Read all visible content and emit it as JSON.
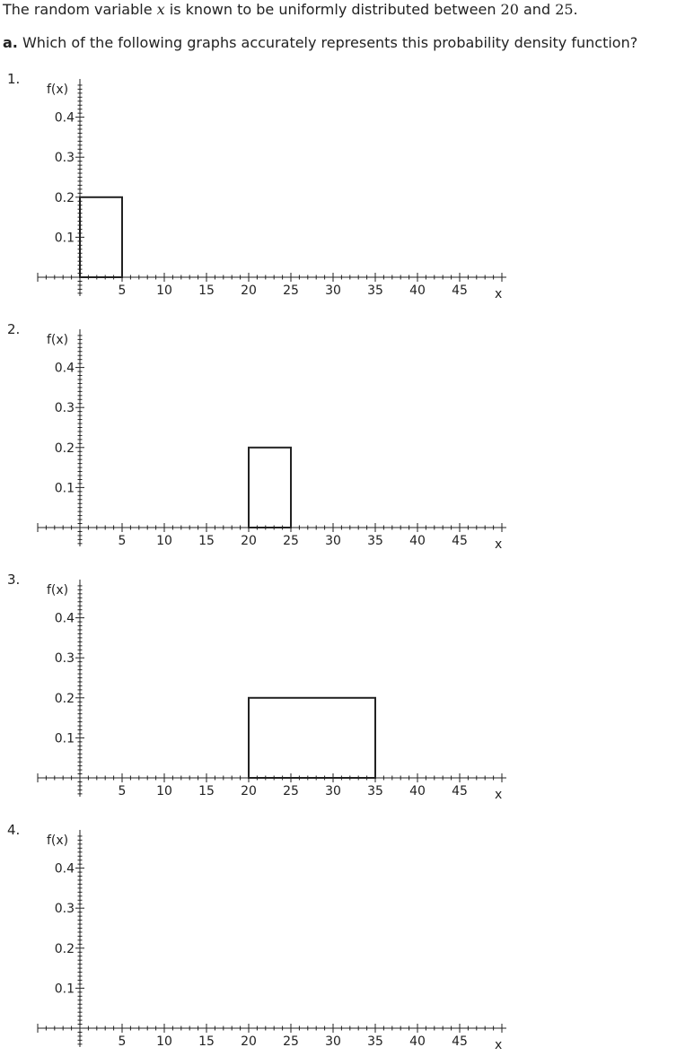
{
  "question": {
    "intro_prefix": "The random variable ",
    "variable": "x",
    "intro_mid": " is known to be uniformly distributed between ",
    "low": "20",
    "intro_and": " and ",
    "high": "25",
    "intro_suffix": ".",
    "part_label": "a.",
    "part_text": " Which of the following graphs accurately represents this probability density function?"
  },
  "chart_data": [
    {
      "type": "area",
      "number": "1.",
      "ylabel": "f(x)",
      "xlabel": "x",
      "xlim": [
        0,
        50
      ],
      "ylim": [
        0,
        0.45
      ],
      "xticks": [
        5,
        10,
        15,
        20,
        25,
        30,
        35,
        40,
        45
      ],
      "yticks": [
        0.1,
        0.2,
        0.3,
        0.4
      ],
      "rect": {
        "x_start": 0,
        "x_end": 5,
        "height": 0.2
      }
    },
    {
      "type": "area",
      "number": "2.",
      "ylabel": "f(x)",
      "xlabel": "x",
      "xlim": [
        0,
        50
      ],
      "ylim": [
        0,
        0.45
      ],
      "xticks": [
        5,
        10,
        15,
        20,
        25,
        30,
        35,
        40,
        45
      ],
      "yticks": [
        0.1,
        0.2,
        0.3,
        0.4
      ],
      "rect": {
        "x_start": 20,
        "x_end": 25,
        "height": 0.2
      }
    },
    {
      "type": "area",
      "number": "3.",
      "ylabel": "f(x)",
      "xlabel": "x",
      "xlim": [
        0,
        50
      ],
      "ylim": [
        0,
        0.45
      ],
      "xticks": [
        5,
        10,
        15,
        20,
        25,
        30,
        35,
        40,
        45
      ],
      "yticks": [
        0.1,
        0.2,
        0.3,
        0.4
      ],
      "rect": {
        "x_start": 20,
        "x_end": 35,
        "height": 0.2
      }
    },
    {
      "type": "area",
      "number": "4.",
      "ylabel": "f(x)",
      "xlabel": "x",
      "xlim": [
        0,
        50
      ],
      "ylim": [
        0,
        0.45
      ],
      "xticks": [
        5,
        10,
        15,
        20,
        25,
        30,
        35,
        40,
        45
      ],
      "yticks": [
        0.1,
        0.2,
        0.3,
        0.4
      ]
    }
  ]
}
